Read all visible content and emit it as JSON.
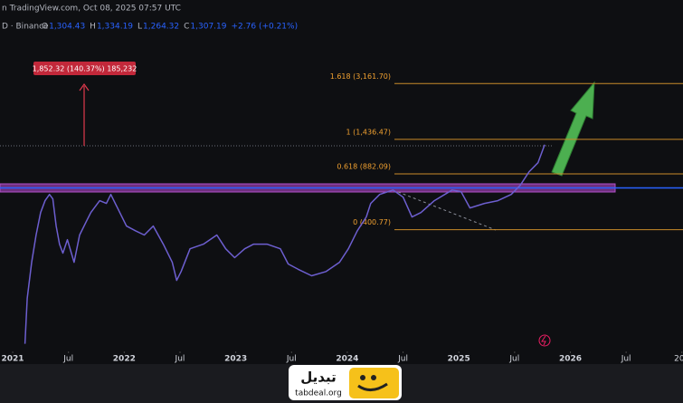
{
  "header": {
    "source": "n TradingView.com, Oct 08, 2025 07:57 UTC",
    "symbol": "D · Binance",
    "ohlc": [
      {
        "key": "O",
        "value": "1,304.43"
      },
      {
        "key": "H",
        "value": "1,334.19"
      },
      {
        "key": "L",
        "value": "1,264.32"
      },
      {
        "key": "C",
        "value": "1,307.19"
      }
    ],
    "change": "+2.76 (+0.21%)"
  },
  "chart_data": {
    "type": "line",
    "x": [
      2021.11,
      2021.13,
      2021.17,
      2021.21,
      2021.25,
      2021.29,
      2021.33,
      2021.36,
      2021.39,
      2021.42,
      2021.45,
      2021.49,
      2021.55,
      2021.6,
      2021.66,
      2021.7,
      2021.78,
      2021.84,
      2021.88,
      2021.94,
      2022.02,
      2022.1,
      2022.18,
      2022.26,
      2022.35,
      2022.43,
      2022.47,
      2022.51,
      2022.59,
      2022.71,
      2022.83,
      2022.91,
      2022.99,
      2023.08,
      2023.16,
      2023.28,
      2023.4,
      2023.47,
      2023.56,
      2023.68,
      2023.81,
      2023.93,
      2024.01,
      2024.09,
      2024.17,
      2024.21,
      2024.29,
      2024.41,
      2024.5,
      2024.58,
      2024.66,
      2024.78,
      2024.94,
      2025.02,
      2025.1,
      2025.23,
      2025.35,
      2025.47,
      2025.55,
      2025.63,
      2025.71,
      2025.77
    ],
    "values": [
      80,
      152,
      253,
      372,
      511,
      604,
      660,
      619,
      422,
      327,
      288,
      348,
      253,
      372,
      450,
      511,
      604,
      581,
      660,
      545,
      422,
      395,
      372,
      422,
      327,
      253,
      196,
      222,
      306,
      327,
      372,
      306,
      270,
      306,
      327,
      327,
      306,
      247,
      229,
      209,
      222,
      253,
      306,
      395,
      480,
      581,
      660,
      703,
      635,
      480,
      511,
      604,
      703,
      686,
      545,
      581,
      604,
      660,
      750,
      910,
      1033,
      1334
    ],
    "color": "#6d5fd0",
    "xlim": [
      2020.886,
      2027.01
    ],
    "ylim": [
      70,
      10300
    ],
    "log_scale": true,
    "xticks": [
      2021,
      {
        "value": 2021.5,
        "label": "Jul"
      },
      2022,
      {
        "value": 2022.5,
        "label": "Jul"
      },
      2023,
      {
        "value": 2023.5,
        "label": "Jul"
      },
      2024,
      {
        "value": 2024.5,
        "label": "Jul"
      },
      2025,
      {
        "value": 2025.5,
        "label": "Jul"
      },
      2026,
      {
        "value": 2026.5,
        "label": "Jul"
      },
      {
        "value": 2027,
        "label": "202"
      }
    ],
    "fib_levels": [
      {
        "value": 3161.7,
        "label": "1.618 (3,161.70)"
      },
      {
        "value": 1436.47,
        "label": "1 (1,436.47)"
      },
      {
        "value": 882.09,
        "label": "0.618 (882.09)"
      },
      {
        "value": 400.77,
        "label": "0 (400.77)"
      }
    ],
    "fib_color": "#c98b2a",
    "measure_label": "1,852.32 (140.37%) 185,232"
  },
  "logo": {
    "name": "تبدیل",
    "url": "tabdeal.org"
  }
}
